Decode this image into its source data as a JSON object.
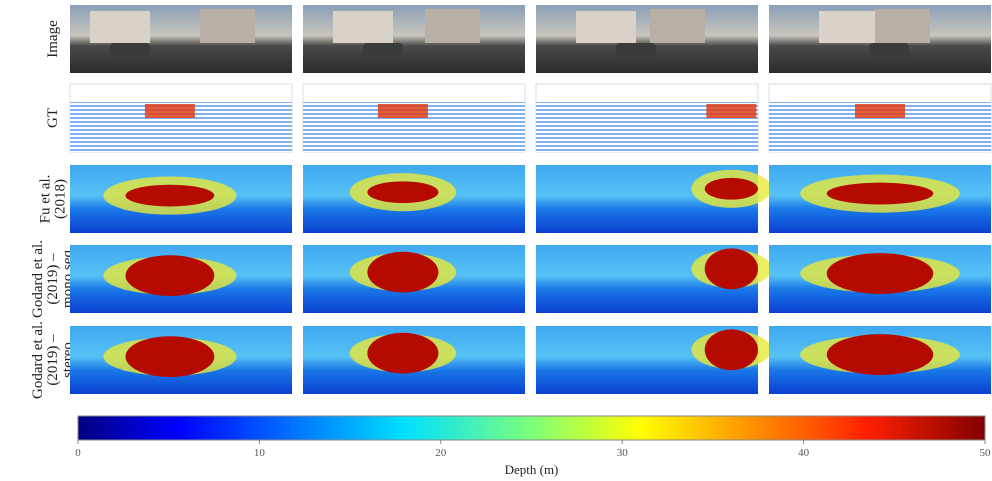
{
  "rows": [
    {
      "label": [
        "Image"
      ]
    },
    {
      "label": [
        "GT"
      ]
    },
    {
      "label": [
        "Fu et al.",
        "(2018)"
      ]
    },
    {
      "label": [
        "Godard et al.",
        "(2019) –",
        "mono seq"
      ]
    },
    {
      "label": [
        "Godard et al.",
        "(2019) –",
        "stereo"
      ]
    }
  ],
  "colorbar": {
    "lim": [
      0,
      50
    ],
    "ticks": [
      0,
      10,
      20,
      30,
      40,
      50
    ],
    "label": "Depth (m)"
  }
}
